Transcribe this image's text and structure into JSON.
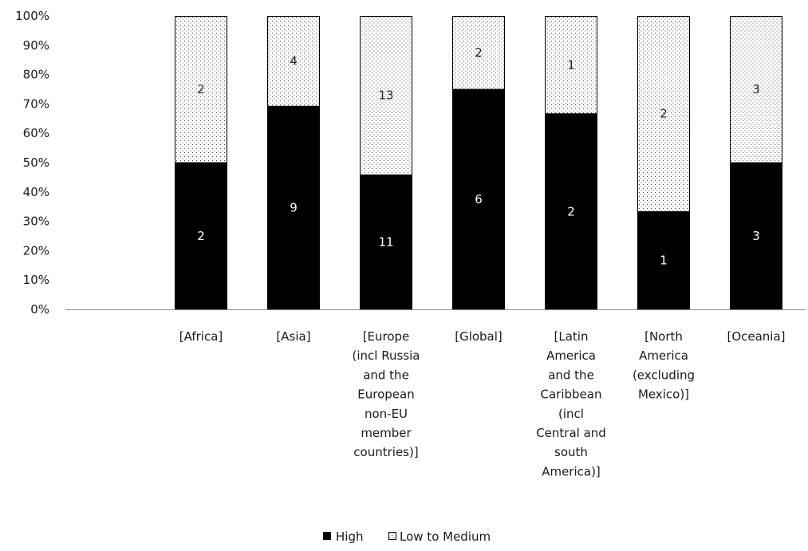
{
  "chart_data": {
    "type": "bar",
    "stacking": "percent",
    "categories": [
      [
        "[Africa]"
      ],
      [
        "[Asia]"
      ],
      [
        "[Europe",
        "(incl Russia",
        "and the",
        "European",
        "non-EU",
        "member",
        "countries)]"
      ],
      [
        "[Global]"
      ],
      [
        "[Latin",
        "America",
        "and the",
        "Caribbean",
        "(incl",
        "Central and",
        "south",
        "America)]"
      ],
      [
        "[North",
        "America",
        "(excluding",
        "Mexico)]"
      ],
      [
        "[Oceania]"
      ]
    ],
    "series": [
      {
        "name": "High",
        "values": [
          2,
          9,
          11,
          6,
          2,
          1,
          3
        ],
        "color": "#000000",
        "pattern": "solid"
      },
      {
        "name": "Low to Medium",
        "values": [
          2,
          4,
          13,
          2,
          1,
          2,
          3
        ],
        "color": "#ffffff",
        "pattern": "dotted"
      }
    ],
    "y_ticks": [
      "0%",
      "10%",
      "20%",
      "30%",
      "40%",
      "50%",
      "60%",
      "70%",
      "80%",
      "90%",
      "100%"
    ],
    "ylim": [
      0,
      100
    ],
    "grid": false,
    "legend": {
      "position": "bottom",
      "entries": [
        "High",
        "Low to Medium"
      ]
    }
  }
}
